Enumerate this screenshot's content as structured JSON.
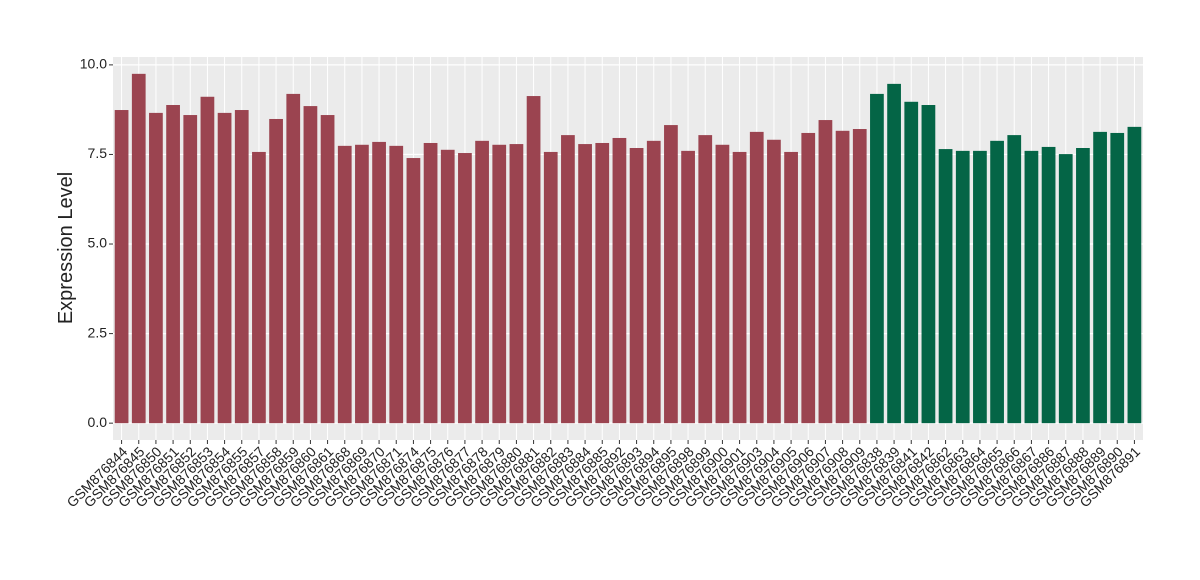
{
  "chart_data": {
    "type": "bar",
    "y_label": "Expression Level",
    "categories": [
      "GSM876844",
      "GSM876845",
      "GSM876850",
      "GSM876851",
      "GSM876852",
      "GSM876853",
      "GSM876854",
      "GSM876855",
      "GSM876857",
      "GSM876858",
      "GSM876859",
      "GSM876860",
      "GSM876861",
      "GSM876868",
      "GSM876869",
      "GSM876870",
      "GSM876871",
      "GSM876874",
      "GSM876875",
      "GSM876876",
      "GSM876877",
      "GSM876878",
      "GSM876879",
      "GSM876880",
      "GSM876881",
      "GSM876882",
      "GSM876883",
      "GSM876884",
      "GSM876885",
      "GSM876892",
      "GSM876893",
      "GSM876894",
      "GSM876895",
      "GSM876898",
      "GSM876899",
      "GSM876900",
      "GSM876901",
      "GSM876903",
      "GSM876904",
      "GSM876905",
      "GSM876906",
      "GSM876907",
      "GSM876908",
      "GSM876909",
      "GSM876838",
      "GSM876839",
      "GSM876841",
      "GSM876842",
      "GSM876862",
      "GSM876863",
      "GSM876864",
      "GSM876865",
      "GSM876866",
      "GSM876867",
      "GSM876886",
      "GSM876887",
      "GSM876888",
      "GSM876889",
      "GSM876890",
      "GSM876891"
    ],
    "values": [
      8.74,
      9.75,
      8.66,
      8.88,
      8.6,
      9.11,
      8.66,
      8.74,
      7.57,
      8.49,
      9.19,
      8.85,
      8.6,
      7.74,
      7.77,
      7.85,
      7.74,
      7.4,
      7.82,
      7.63,
      7.54,
      7.88,
      7.77,
      7.79,
      9.13,
      7.57,
      8.04,
      7.79,
      7.82,
      7.96,
      7.68,
      7.88,
      8.32,
      7.6,
      8.04,
      7.77,
      7.57,
      8.13,
      7.91,
      7.57,
      8.1,
      8.46,
      8.16,
      8.21,
      9.19,
      9.47,
      8.97,
      8.88,
      7.65,
      7.6,
      7.6,
      7.88,
      8.04,
      7.6,
      7.71,
      7.51,
      7.68,
      8.13,
      8.1,
      8.27
    ],
    "colors": [
      "#9b4450",
      "#9b4450",
      "#9b4450",
      "#9b4450",
      "#9b4450",
      "#9b4450",
      "#9b4450",
      "#9b4450",
      "#9b4450",
      "#9b4450",
      "#9b4450",
      "#9b4450",
      "#9b4450",
      "#9b4450",
      "#9b4450",
      "#9b4450",
      "#9b4450",
      "#9b4450",
      "#9b4450",
      "#9b4450",
      "#9b4450",
      "#9b4450",
      "#9b4450",
      "#9b4450",
      "#9b4450",
      "#9b4450",
      "#9b4450",
      "#9b4450",
      "#9b4450",
      "#9b4450",
      "#9b4450",
      "#9b4450",
      "#9b4450",
      "#9b4450",
      "#9b4450",
      "#9b4450",
      "#9b4450",
      "#9b4450",
      "#9b4450",
      "#9b4450",
      "#9b4450",
      "#9b4450",
      "#9b4450",
      "#9b4450",
      "#046546",
      "#046546",
      "#046546",
      "#046546",
      "#046546",
      "#046546",
      "#046546",
      "#046546",
      "#046546",
      "#046546",
      "#046546",
      "#046546",
      "#046546",
      "#046546",
      "#046546",
      "#046546"
    ],
    "ylim": [
      -0.47,
      10.22
    ],
    "yticks": [
      {
        "value": 0,
        "label": "0.0"
      },
      {
        "value": 2.5,
        "label": "2.5"
      },
      {
        "value": 5,
        "label": "5.0"
      },
      {
        "value": 7.5,
        "label": "7.5"
      },
      {
        "value": 10,
        "label": "10.0"
      }
    ],
    "grid": true
  }
}
